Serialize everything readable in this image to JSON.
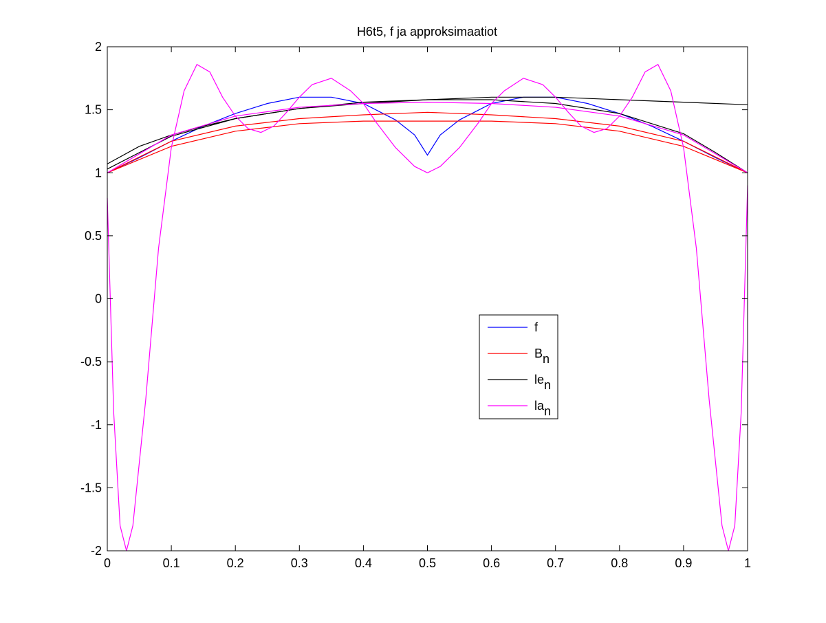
{
  "chart_data": {
    "type": "line",
    "title": "H6t5, f ja approksimaatiot",
    "xlabel": "",
    "ylabel": "",
    "xlim": [
      0,
      1
    ],
    "ylim": [
      -2,
      2
    ],
    "grid": false,
    "xticks": [
      "0",
      "0.1",
      "0.2",
      "0.3",
      "0.4",
      "0.5",
      "0.6",
      "0.7",
      "0.8",
      "0.9",
      "1"
    ],
    "yticks": [
      "-2",
      "-1.5",
      "-1",
      "-0.5",
      "0",
      "0.5",
      "1",
      "1.5",
      "2"
    ],
    "legend_position": "lower-center-right",
    "legend": [
      {
        "base": "f",
        "sub": ""
      },
      {
        "base": "B",
        "sub": "n"
      },
      {
        "base": "le",
        "sub": "n"
      },
      {
        "base": "la",
        "sub": "n"
      }
    ],
    "series": [
      {
        "name": "f",
        "color": "#0000ff",
        "x": [
          0,
          0.05,
          0.1,
          0.15,
          0.2,
          0.25,
          0.3,
          0.35,
          0.4,
          0.45,
          0.48,
          0.5,
          0.52,
          0.55,
          0.6,
          0.65,
          0.7,
          0.75,
          0.8,
          0.85,
          0.9,
          0.95,
          1
        ],
        "y": [
          1.0,
          1.12,
          1.25,
          1.37,
          1.47,
          1.55,
          1.6,
          1.6,
          1.55,
          1.42,
          1.3,
          1.14,
          1.3,
          1.42,
          1.55,
          1.6,
          1.6,
          1.55,
          1.47,
          1.37,
          1.25,
          1.12,
          1.0
        ]
      },
      {
        "name": "B",
        "color": "#ff0000",
        "x": [
          0,
          0.1,
          0.2,
          0.3,
          0.4,
          0.5,
          0.6,
          0.7,
          0.8,
          0.9,
          1
        ],
        "y": [
          1.0,
          1.25,
          1.37,
          1.43,
          1.46,
          1.48,
          1.46,
          1.43,
          1.37,
          1.25,
          1.0
        ]
      },
      {
        "name": "B",
        "color": "#ff0000",
        "x": [
          0,
          0.1,
          0.2,
          0.3,
          0.4,
          0.5,
          0.6,
          0.7,
          0.8,
          0.9,
          1
        ],
        "y": [
          1.0,
          1.21,
          1.33,
          1.39,
          1.41,
          1.41,
          1.41,
          1.39,
          1.33,
          1.21,
          1.0
        ]
      },
      {
        "name": "le",
        "color": "#000000",
        "x": [
          0,
          0.05,
          0.1,
          0.15,
          0.2,
          0.3,
          0.4,
          0.5,
          0.6,
          0.7,
          0.8,
          0.9,
          1
        ],
        "y": [
          1.07,
          1.21,
          1.3,
          1.37,
          1.43,
          1.51,
          1.55,
          1.58,
          1.6,
          1.6,
          1.58,
          1.56,
          1.54
        ]
      },
      {
        "name": "le",
        "color": "#000000",
        "x": [
          0,
          0.1,
          0.2,
          0.3,
          0.4,
          0.5,
          0.6,
          0.7,
          0.8,
          0.9,
          0.95,
          1
        ],
        "y": [
          1.03,
          1.29,
          1.43,
          1.51,
          1.56,
          1.58,
          1.58,
          1.55,
          1.47,
          1.31,
          1.16,
          1.0
        ]
      },
      {
        "name": "la",
        "color": "#ff00ff",
        "x": [
          0,
          0.01,
          0.02,
          0.03,
          0.04,
          0.06,
          0.08,
          0.1,
          0.12,
          0.14,
          0.16,
          0.18,
          0.2,
          0.22,
          0.24,
          0.26,
          0.28,
          0.3,
          0.32,
          0.35,
          0.38,
          0.4,
          0.42,
          0.45,
          0.48,
          0.5,
          0.52,
          0.55,
          0.58,
          0.6,
          0.62,
          0.65,
          0.68,
          0.7,
          0.72,
          0.74,
          0.76,
          0.78,
          0.8,
          0.82,
          0.84,
          0.86,
          0.88,
          0.9,
          0.92,
          0.94,
          0.96,
          0.97,
          0.98,
          0.99,
          1
        ],
        "y": [
          0.8,
          -0.9,
          -1.8,
          -2.0,
          -1.8,
          -0.8,
          0.4,
          1.2,
          1.65,
          1.86,
          1.8,
          1.6,
          1.45,
          1.35,
          1.32,
          1.37,
          1.48,
          1.6,
          1.7,
          1.75,
          1.65,
          1.55,
          1.4,
          1.2,
          1.05,
          1.0,
          1.05,
          1.2,
          1.4,
          1.55,
          1.65,
          1.75,
          1.7,
          1.6,
          1.48,
          1.37,
          1.32,
          1.35,
          1.45,
          1.6,
          1.8,
          1.86,
          1.65,
          1.2,
          0.4,
          -0.8,
          -1.8,
          -2.0,
          -1.8,
          -0.9,
          0.9
        ]
      },
      {
        "name": "la",
        "color": "#ff00ff",
        "x": [
          0,
          0.1,
          0.2,
          0.3,
          0.4,
          0.5,
          0.6,
          0.7,
          0.8,
          0.9,
          1
        ],
        "y": [
          1.0,
          1.3,
          1.45,
          1.52,
          1.55,
          1.56,
          1.55,
          1.52,
          1.45,
          1.3,
          1.0
        ]
      }
    ]
  }
}
